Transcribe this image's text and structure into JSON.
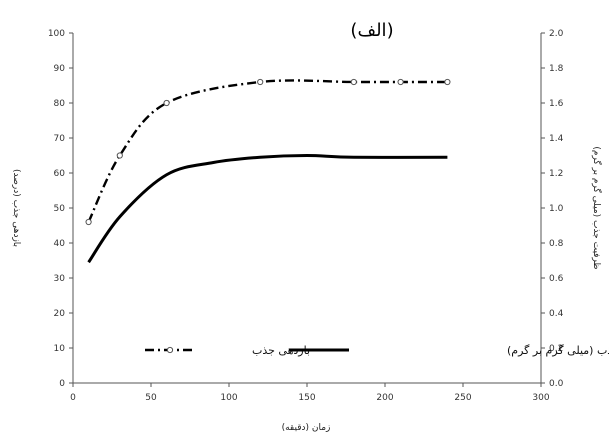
{
  "chart_data": {
    "type": "line",
    "title": "(الف)",
    "xlabel": "زمان (دقیقه)",
    "ylabel": "بازدهی جذب (درصد)",
    "y2label": "ظرفیت جذب (میلی گرم بر گرم)",
    "xlim": [
      0,
      300
    ],
    "ylim": [
      0,
      100
    ],
    "y2lim": [
      0.0,
      2.0
    ],
    "x_ticks": [
      "0",
      "50",
      "100",
      "150",
      "200",
      "250",
      "300"
    ],
    "y_ticks": [
      "0",
      "10",
      "20",
      "30",
      "40",
      "50",
      "60",
      "70",
      "80",
      "90",
      "100"
    ],
    "y2_ticks": [
      "0.0",
      "0.2",
      "0.4",
      "0.6",
      "0.8",
      "1.0",
      "1.2",
      "1.4",
      "1.6",
      "1.8",
      "2.0"
    ],
    "grid": false,
    "legend_position": "bottom",
    "series": [
      {
        "name": "بازدهی جذب",
        "axis": "left",
        "style": "dash-dot",
        "marker": "open-circle",
        "color": "#000000",
        "points": [
          [
            10,
            46
          ],
          [
            30,
            65
          ],
          [
            60,
            80
          ],
          [
            120,
            86
          ],
          [
            180,
            86
          ],
          [
            210,
            86
          ],
          [
            240,
            86
          ]
        ]
      },
      {
        "name": "ظرفیت جذب (میلی گرم بر گرم)",
        "axis": "right",
        "style": "solid",
        "marker": "none",
        "color": "#000000",
        "points": [
          [
            10,
            0.69
          ],
          [
            30,
            0.95
          ],
          [
            60,
            1.19
          ],
          [
            90,
            1.26
          ],
          [
            120,
            1.29
          ],
          [
            150,
            1.3
          ],
          [
            180,
            1.29
          ],
          [
            240,
            1.29
          ]
        ]
      }
    ]
  }
}
